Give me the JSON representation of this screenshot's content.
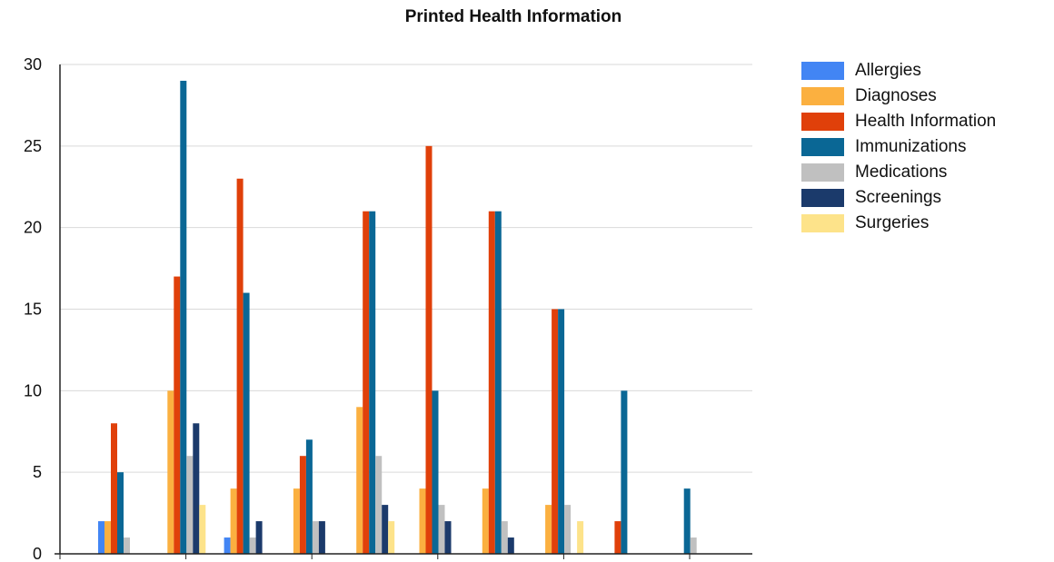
{
  "chart_data": {
    "type": "bar",
    "title": "Printed Health Information",
    "xlabel": "",
    "ylabel": "",
    "ylim": [
      0,
      30
    ],
    "yticks": [
      0,
      5,
      10,
      15,
      20,
      25,
      30
    ],
    "grid": true,
    "legend_position": "right",
    "categories": [
      "",
      "",
      "",
      "",
      "",
      "",
      "",
      "",
      "",
      "",
      ""
    ],
    "series": [
      {
        "name": "Allergies",
        "color": "#4285f4",
        "values": [
          2,
          0,
          1,
          0,
          0,
          0,
          0,
          0,
          0,
          0,
          0
        ]
      },
      {
        "name": "Diagnoses",
        "color": "#fbb040",
        "values": [
          2,
          10,
          4,
          4,
          9,
          4,
          4,
          3,
          0,
          0,
          0
        ]
      },
      {
        "name": "Health Information",
        "color": "#e0400a",
        "values": [
          8,
          17,
          23,
          6,
          21,
          25,
          21,
          15,
          2,
          0,
          0
        ]
      },
      {
        "name": "Immunizations",
        "color": "#0a6795",
        "values": [
          5,
          29,
          16,
          7,
          21,
          10,
          21,
          15,
          10,
          4,
          0
        ]
      },
      {
        "name": "Medications",
        "color": "#c0c0c0",
        "values": [
          1,
          6,
          1,
          2,
          6,
          3,
          2,
          3,
          0,
          1,
          0
        ]
      },
      {
        "name": "Screenings",
        "color": "#1b3a6b",
        "values": [
          0,
          8,
          2,
          2,
          3,
          2,
          1,
          0,
          0,
          0,
          0
        ]
      },
      {
        "name": "Surgeries",
        "color": "#fde38a",
        "values": [
          0,
          3,
          0,
          0,
          2,
          0,
          0,
          2,
          0,
          0,
          0
        ]
      }
    ]
  }
}
